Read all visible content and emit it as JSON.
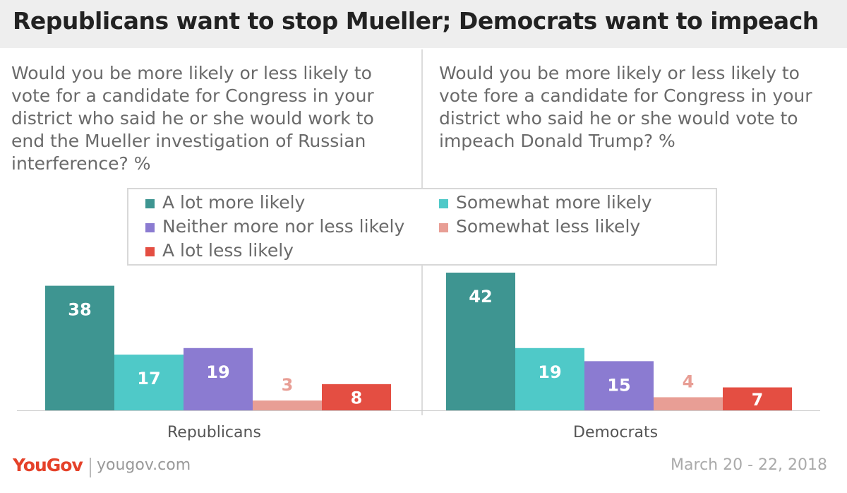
{
  "title": "Republicans want to stop Mueller; Democrats want to impeach",
  "questions": {
    "left": "Would you be more likely or less likely to vote for a candidate for Congress in your district who said he or she would work to end the Mueller investigation of Russian interference? %",
    "right": "Would you be more likely or less likely to vote fore a candidate for Congress in your district who said he or she would vote to impeach Donald Trump? %"
  },
  "legend": [
    {
      "label": "A lot more likely",
      "color": "#3e9591"
    },
    {
      "label": "Somewhat more likely",
      "color": "#4fc9c8"
    },
    {
      "label": "Neither more nor less likely",
      "color": "#8b7bd1"
    },
    {
      "label": "Somewhat less likely",
      "color": "#e89e95"
    },
    {
      "label": "A lot less likely",
      "color": "#e44e42"
    }
  ],
  "chart_data": [
    {
      "type": "bar",
      "group": "Republicans",
      "categories": [
        "A lot more likely",
        "Somewhat more likely",
        "Neither more nor less likely",
        "Somewhat less likely",
        "A lot less likely"
      ],
      "values": [
        38,
        17,
        19,
        3,
        8
      ]
    },
    {
      "type": "bar",
      "group": "Democrats",
      "categories": [
        "A lot more likely",
        "Somewhat more likely",
        "Neither more nor less likely",
        "Somewhat less likely",
        "A lot less likely"
      ],
      "values": [
        42,
        19,
        15,
        4,
        7
      ]
    }
  ],
  "footer": {
    "brand": "YouGov",
    "url": "yougov.com",
    "date": "March 20 - 22, 2018"
  }
}
